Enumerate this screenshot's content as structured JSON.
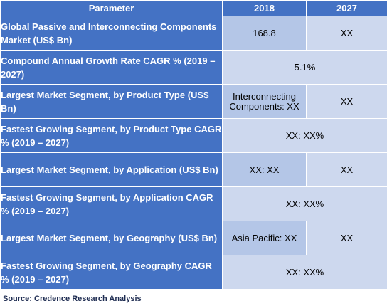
{
  "table": {
    "headers": {
      "parameter": "Parameter",
      "y2018": "2018",
      "y2027": "2027"
    },
    "rows": [
      {
        "parameter": "Global Passive and Interconnecting Components Market (US$ Bn)",
        "v2018": "168.8",
        "v2027": "XX"
      },
      {
        "parameter": "Compound Annual Growth Rate CAGR % (2019 – 2027)",
        "merged": "5.1%"
      },
      {
        "parameter": "Largest Market Segment, by Product Type (US$ Bn)",
        "v2018": "Interconnecting Components: XX",
        "v2027": "XX"
      },
      {
        "parameter": "Fastest Growing Segment, by Product Type CAGR % (2019 – 2027)",
        "merged": "XX: XX%"
      },
      {
        "parameter": "Largest Market Segment, by Application (US$ Bn)",
        "v2018": "XX: XX",
        "v2027": "XX"
      },
      {
        "parameter": "Fastest Growing Segment, by Application CAGR % (2019 – 2027)",
        "merged": "XX: XX%"
      },
      {
        "parameter": "Largest Market Segment, by Geography (US$ Bn)",
        "v2018": "Asia Pacific: XX",
        "v2027": "XX"
      },
      {
        "parameter": "Fastest Growing Segment, by Geography CAGR % (2019 – 2027)",
        "merged": "XX: XX%"
      }
    ]
  },
  "footer": {
    "source": "Source: Credence Research Analysis"
  },
  "colors": {
    "header": "#4472c4",
    "cell": "#b4c6e7",
    "cell_alt": "#cdd8ee"
  }
}
